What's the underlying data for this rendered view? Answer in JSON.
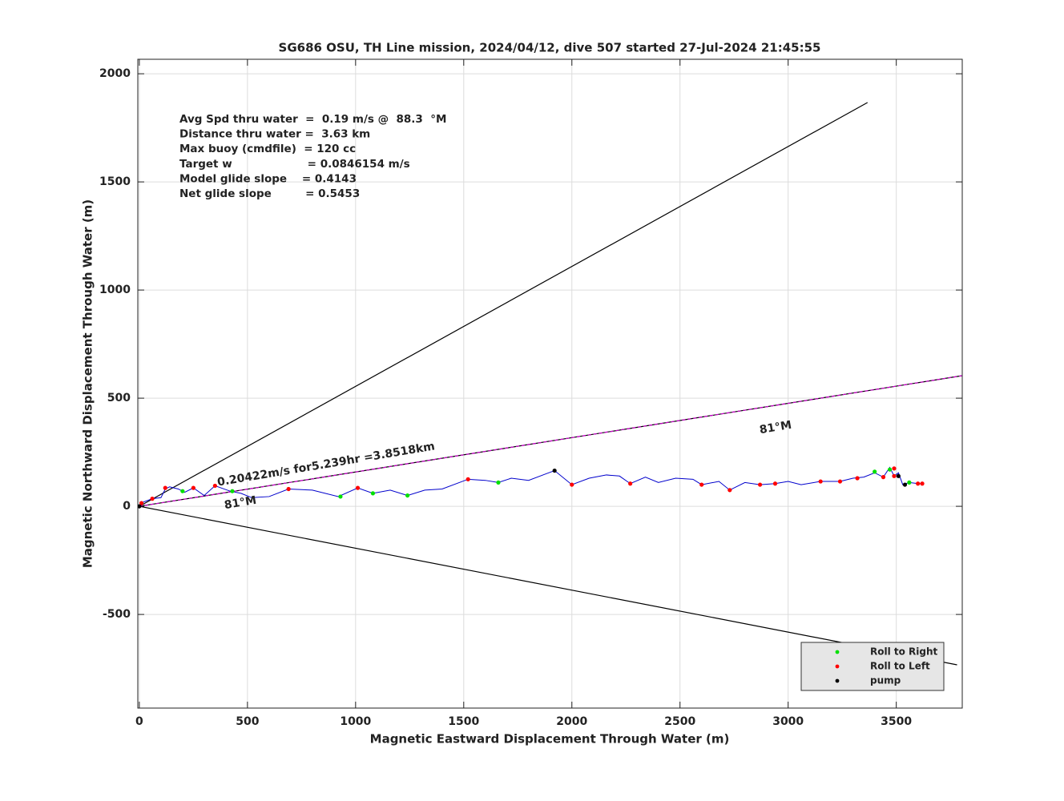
{
  "chart_data": {
    "type": "line",
    "title": "SG686 OSU, TH Line mission, 2024/04/12, dive 507 started 27-Jul-2024 21:45:55",
    "xlabel": "Magnetic Eastward Displacement Through Water (m)",
    "ylabel": "Magnetic Northward Displacement Through Water (m)",
    "xlim": [
      -7,
      3805
    ],
    "ylim": [
      -933,
      2067
    ],
    "xticks": [
      0,
      500,
      1000,
      1500,
      2000,
      2500,
      3000,
      3500
    ],
    "yticks": [
      -500,
      0,
      500,
      1000,
      1500,
      2000
    ],
    "grid": true,
    "legend": "lower right",
    "stats": [
      "Avg Spd thru water  =  0.19 m/s @  88.3  °M",
      "Distance thru water =  3.63 km",
      "Max buoy (cmdfile)  = 120 cc",
      "Target w                    = 0.0846154 m/s",
      "Model glide slope    = 0.4143",
      "Net glide slope         = 0.5453"
    ],
    "annotations": [
      "0.20422m/s for5.239hr =3.8518km",
      "81°M",
      "81°M"
    ],
    "reference_lines": [
      {
        "color": "#000000",
        "style": "solid",
        "x": [
          0,
          3367
        ],
        "y": [
          0,
          1867
        ]
      },
      {
        "color": "#000000",
        "style": "solid",
        "x": [
          0,
          3781
        ],
        "y": [
          0,
          -733
        ]
      },
      {
        "color": "#000000",
        "style": "solid",
        "x": [
          0,
          3805
        ],
        "y": [
          0,
          604
        ]
      },
      {
        "color": "#cc00cc",
        "style": "dashed",
        "x": [
          0,
          3805
        ],
        "y": [
          0,
          604
        ]
      }
    ],
    "track": {
      "color": "#0000cc",
      "x": [
        0,
        20,
        60,
        100,
        120,
        140,
        180,
        210,
        250,
        300,
        350,
        420,
        470,
        520,
        600,
        690,
        800,
        920,
        1010,
        1080,
        1160,
        1240,
        1320,
        1400,
        1520,
        1600,
        1660,
        1720,
        1800,
        1880,
        1920,
        2000,
        2080,
        2160,
        2220,
        2270,
        2340,
        2400,
        2480,
        2560,
        2600,
        2680,
        2730,
        2800,
        2870,
        2940,
        3000,
        3060,
        3150,
        3240,
        3300,
        3350,
        3400,
        3440,
        3470,
        3490,
        3510,
        3530,
        3560,
        3600,
        3620
      ],
      "y": [
        0,
        20,
        35,
        40,
        80,
        90,
        80,
        65,
        85,
        50,
        95,
        70,
        60,
        40,
        45,
        80,
        75,
        45,
        85,
        60,
        75,
        50,
        75,
        80,
        125,
        120,
        110,
        130,
        120,
        150,
        165,
        100,
        130,
        145,
        140,
        105,
        135,
        110,
        130,
        125,
        100,
        115,
        75,
        110,
        100,
        105,
        115,
        100,
        115,
        115,
        130,
        135,
        155,
        135,
        180,
        140,
        155,
        100,
        110,
        105,
        105
      ]
    },
    "series": [
      {
        "name": "Roll to Right",
        "color": "#00e000",
        "x": [
          200,
          430,
          930,
          1080,
          1240,
          1660,
          3400,
          3470,
          3560
        ],
        "y": [
          70,
          70,
          45,
          60,
          50,
          110,
          160,
          170,
          110
        ]
      },
      {
        "name": "Roll to Left",
        "color": "#ff0000",
        "x": [
          10,
          60,
          120,
          250,
          350,
          690,
          1010,
          1520,
          2000,
          2270,
          2600,
          2730,
          2870,
          2940,
          3150,
          3240,
          3320,
          3440,
          3490,
          3490,
          3600,
          3620
        ],
        "y": [
          15,
          35,
          85,
          85,
          95,
          80,
          85,
          125,
          100,
          105,
          100,
          75,
          100,
          105,
          115,
          115,
          130,
          135,
          175,
          140,
          105,
          105
        ]
      },
      {
        "name": "pump",
        "color": "#000000",
        "x": [
          0,
          1920,
          3510,
          3540
        ],
        "y": [
          0,
          165,
          140,
          100
        ]
      }
    ]
  }
}
